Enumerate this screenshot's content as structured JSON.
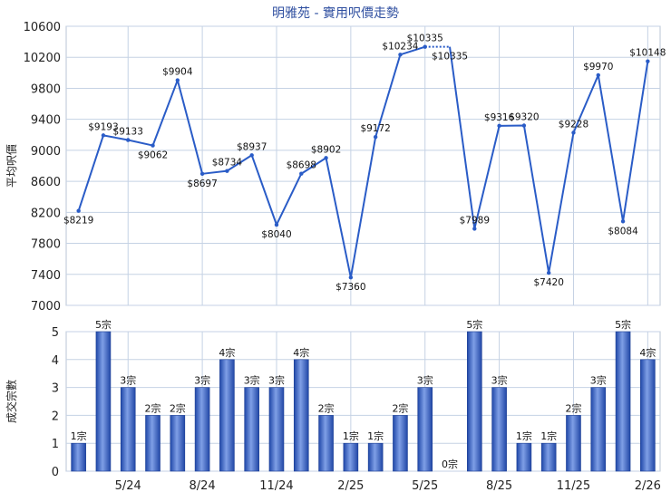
{
  "chart_data": [
    {
      "type": "line",
      "title": "明雅苑 - 實用呎價走勢",
      "ylabel": "平均呎價",
      "ylim": [
        7000,
        10600
      ],
      "yticks": [
        7000,
        7400,
        7800,
        8200,
        8600,
        9000,
        9400,
        9800,
        10200,
        10600
      ],
      "grid": true,
      "color": "#2a5cc7",
      "x": [
        "3/24",
        "4/24",
        "5/24",
        "6/24",
        "7/24",
        "8/24",
        "9/24",
        "10/24",
        "11/24",
        "12/24",
        "1/25",
        "2/25",
        "3/25",
        "4/25",
        "5/25",
        "6/25",
        "7/25",
        "8/25",
        "9/25",
        "10/25",
        "11/25",
        "12/25",
        "1/26",
        "2/26"
      ],
      "values": [
        8219,
        9193,
        9133,
        9062,
        9904,
        8697,
        8734,
        8937,
        8040,
        8698,
        8902,
        7360,
        9172,
        10234,
        10335,
        null,
        7989,
        9316,
        9320,
        7420,
        9228,
        9970,
        8084,
        10148
      ],
      "gap_bridge": {
        "from": 14,
        "to": 16
      },
      "data_labels": [
        "$8219",
        "$9193",
        "$9133",
        "$9062",
        "$9904",
        "$8697",
        "$8734",
        "$8937",
        "$8040",
        "$8698",
        "$8902",
        "$7360",
        "$9172",
        "$10234",
        "$10335",
        "$10335",
        "$7989",
        "$9316",
        "$9320",
        "$7420",
        "$9228",
        "$9970",
        "$8084",
        "$10148"
      ],
      "x_tick_labels": [
        "5/24",
        "8/24",
        "11/24",
        "2/25",
        "5/25",
        "8/25",
        "11/25",
        "2/26"
      ]
    },
    {
      "type": "bar",
      "ylabel": "成交宗數",
      "ylim": [
        0,
        5
      ],
      "yticks": [
        0,
        1,
        2,
        3,
        4,
        5
      ],
      "grid": true,
      "color": "#3a63c4",
      "categories": [
        "3/24",
        "4/24",
        "5/24",
        "6/24",
        "7/24",
        "8/24",
        "9/24",
        "10/24",
        "11/24",
        "12/24",
        "1/25",
        "2/25",
        "3/25",
        "4/25",
        "5/25",
        "6/25",
        "7/25",
        "8/25",
        "9/25",
        "10/25",
        "11/25",
        "12/25",
        "1/26",
        "2/26"
      ],
      "values": [
        1,
        5,
        3,
        2,
        2,
        3,
        4,
        3,
        3,
        4,
        2,
        1,
        1,
        2,
        3,
        0,
        5,
        3,
        1,
        1,
        2,
        3,
        5,
        4
      ],
      "unit": "宗",
      "x_tick_labels": [
        "5/24",
        "8/24",
        "11/24",
        "2/25",
        "5/25",
        "8/25",
        "11/25",
        "2/26"
      ]
    }
  ]
}
